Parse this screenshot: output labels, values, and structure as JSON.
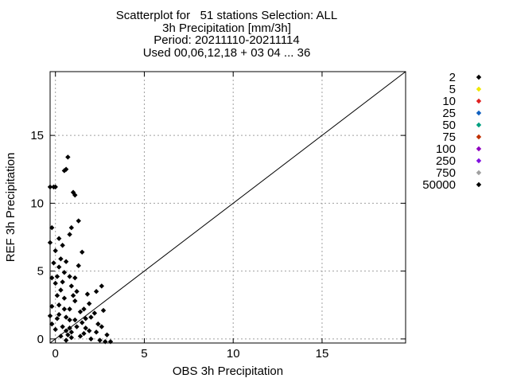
{
  "chart_data": {
    "type": "scatter",
    "title_lines": [
      "Scatterplot for   51 stations Selection: ALL",
      "3h Precipitation [mm/3h]",
      "Period: 20211110-20211114",
      "Used 00,06,12,18 + 03 04 ... 36"
    ],
    "xlabel": "OBS 3h Precipitation",
    "ylabel": "REF 3h Precipitation",
    "xlim": [
      -0.3,
      19.7
    ],
    "ylim": [
      -0.3,
      19.7
    ],
    "xticks": [
      0,
      5,
      10,
      15
    ],
    "yticks": [
      0,
      5,
      10,
      15
    ],
    "grid": true,
    "diagonal_line": true,
    "legend_position": "right",
    "series": [
      {
        "name": "2",
        "color": "#000000",
        "points": []
      },
      {
        "name": "5",
        "color": "#f0e800",
        "points": []
      },
      {
        "name": "10",
        "color": "#e02020",
        "points": []
      },
      {
        "name": "25",
        "color": "#1060c0",
        "points": []
      },
      {
        "name": "50",
        "color": "#00a080",
        "points": []
      },
      {
        "name": "75",
        "color": "#c03000",
        "points": []
      },
      {
        "name": "100",
        "color": "#9000c0",
        "points": []
      },
      {
        "name": "250",
        "color": "#8010e0",
        "points": []
      },
      {
        "name": "750",
        "color": "#a0a0a0",
        "points": []
      },
      {
        "name": "50000",
        "color": "#000000",
        "points": [
          [
            -0.3,
            11.2
          ],
          [
            -0.1,
            11.2
          ],
          [
            0.0,
            11.2
          ],
          [
            0.5,
            12.4
          ],
          [
            0.6,
            12.5
          ],
          [
            0.7,
            13.4
          ],
          [
            1.0,
            10.8
          ],
          [
            1.1,
            10.6
          ],
          [
            1.3,
            8.7
          ],
          [
            0.9,
            8.2
          ],
          [
            0.8,
            7.7
          ],
          [
            0.2,
            7.4
          ],
          [
            0.4,
            6.9
          ],
          [
            -0.3,
            7.1
          ],
          [
            -0.2,
            8.2
          ],
          [
            0.0,
            6.5
          ],
          [
            -0.1,
            5.6
          ],
          [
            0.3,
            5.9
          ],
          [
            0.6,
            5.7
          ],
          [
            0.2,
            5.3
          ],
          [
            0.5,
            4.9
          ],
          [
            -0.2,
            4.5
          ],
          [
            0.1,
            4.6
          ],
          [
            0.8,
            4.6
          ],
          [
            1.1,
            4.5
          ],
          [
            1.5,
            6.4
          ],
          [
            1.3,
            5.4
          ],
          [
            0.4,
            4.2
          ],
          [
            0.9,
            3.9
          ],
          [
            1.2,
            3.5
          ],
          [
            2.7,
            2.1
          ],
          [
            2.6,
            3.9
          ],
          [
            2.3,
            3.5
          ],
          [
            1.8,
            3.3
          ],
          [
            1.9,
            2.6
          ],
          [
            1.6,
            2.2
          ],
          [
            0.8,
            2.2
          ],
          [
            0.5,
            3.0
          ],
          [
            1.1,
            2.8
          ],
          [
            1.4,
            2.0
          ],
          [
            0.2,
            1.8
          ],
          [
            0.6,
            1.6
          ],
          [
            0.8,
            1.4
          ],
          [
            1.5,
            1.2
          ],
          [
            2.0,
            1.6
          ],
          [
            2.4,
            1.1
          ],
          [
            2.6,
            0.9
          ],
          [
            2.3,
            0.5
          ],
          [
            1.9,
            0.6
          ],
          [
            1.7,
            0.8
          ],
          [
            1.2,
            0.9
          ],
          [
            0.9,
            0.5
          ],
          [
            0.7,
            0.3
          ],
          [
            -0.3,
            1.7
          ],
          [
            -0.2,
            1.1
          ],
          [
            0.0,
            0.7
          ],
          [
            0.3,
            0.2
          ],
          [
            0.6,
            -0.1
          ],
          [
            0.9,
            0.1
          ],
          [
            1.4,
            0.2
          ],
          [
            2.8,
            -0.2
          ],
          [
            2.5,
            -0.1
          ],
          [
            2.0,
            0.0
          ],
          [
            3.1,
            -0.2
          ],
          [
            1.1,
            1.4
          ],
          [
            0.4,
            0.9
          ],
          [
            0.1,
            1.5
          ],
          [
            1.7,
            1.5
          ],
          [
            0.8,
            0.8
          ],
          [
            0.2,
            2.5
          ],
          [
            -0.2,
            2.4
          ],
          [
            0.1,
            3.2
          ],
          [
            0.0,
            4.1
          ],
          [
            0.5,
            2.2
          ],
          [
            1.0,
            3.2
          ],
          [
            1.6,
            0.4
          ],
          [
            2.2,
            1.9
          ],
          [
            0.3,
            3.6
          ],
          [
            2.9,
            0.3
          ],
          [
            0.6,
            0.6
          ]
        ]
      }
    ]
  }
}
